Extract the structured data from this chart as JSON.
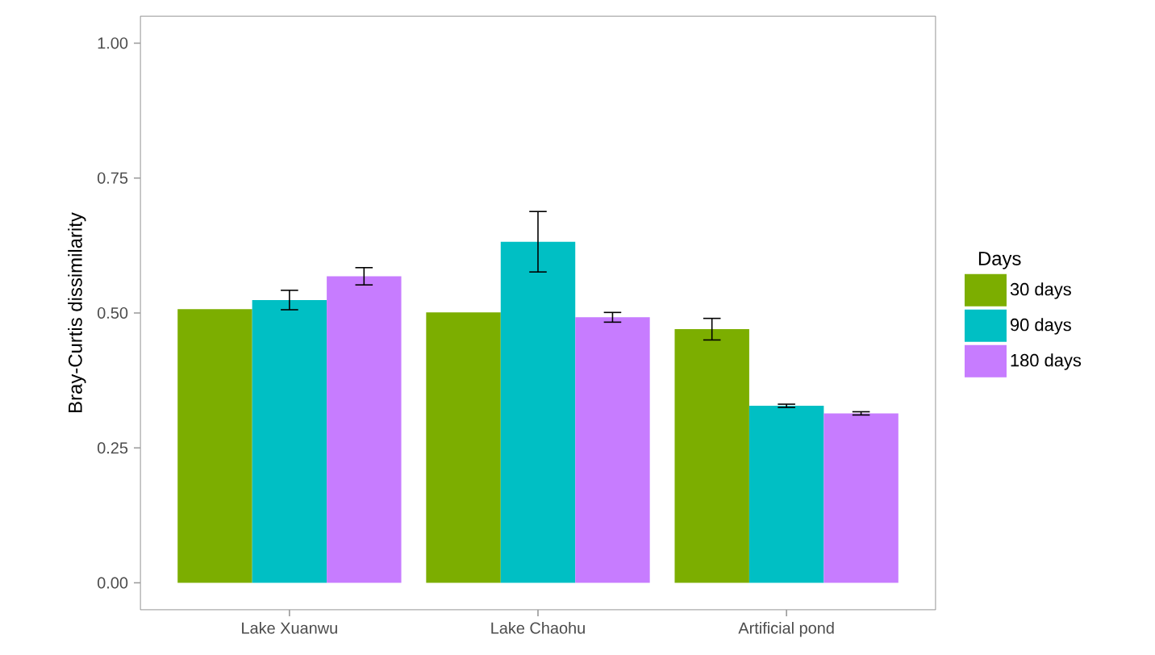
{
  "chart_data": {
    "type": "bar",
    "ylabel": "Bray-Curtis dissimilarity",
    "legend_title": "Days",
    "legend": "right",
    "grid": false,
    "categories": [
      "Lake Xuanwu",
      "Lake Chaohu",
      "Artificial pond"
    ],
    "ylim": [
      -0.05,
      1.05
    ],
    "yticks": [
      {
        "value": 0,
        "label": "0.00"
      },
      {
        "value": 0.25,
        "label": "0.25"
      },
      {
        "value": 0.5,
        "label": "0.50"
      },
      {
        "value": 0.75,
        "label": "0.75"
      },
      {
        "value": 1,
        "label": "1.00"
      }
    ],
    "series": [
      {
        "name": "30 days",
        "color": "#7CAE00",
        "values": [
          0.507,
          0.501,
          0.47
        ],
        "errors": [
          null,
          null,
          0.02
        ]
      },
      {
        "name": "90 days",
        "color": "#00BFC4",
        "values": [
          0.524,
          0.632,
          0.328
        ],
        "errors": [
          0.018,
          0.056,
          0.003
        ]
      },
      {
        "name": "180 days",
        "color": "#C77CFF",
        "values": [
          0.568,
          0.492,
          0.314
        ],
        "errors": [
          0.016,
          0.009,
          0.003
        ]
      }
    ]
  }
}
